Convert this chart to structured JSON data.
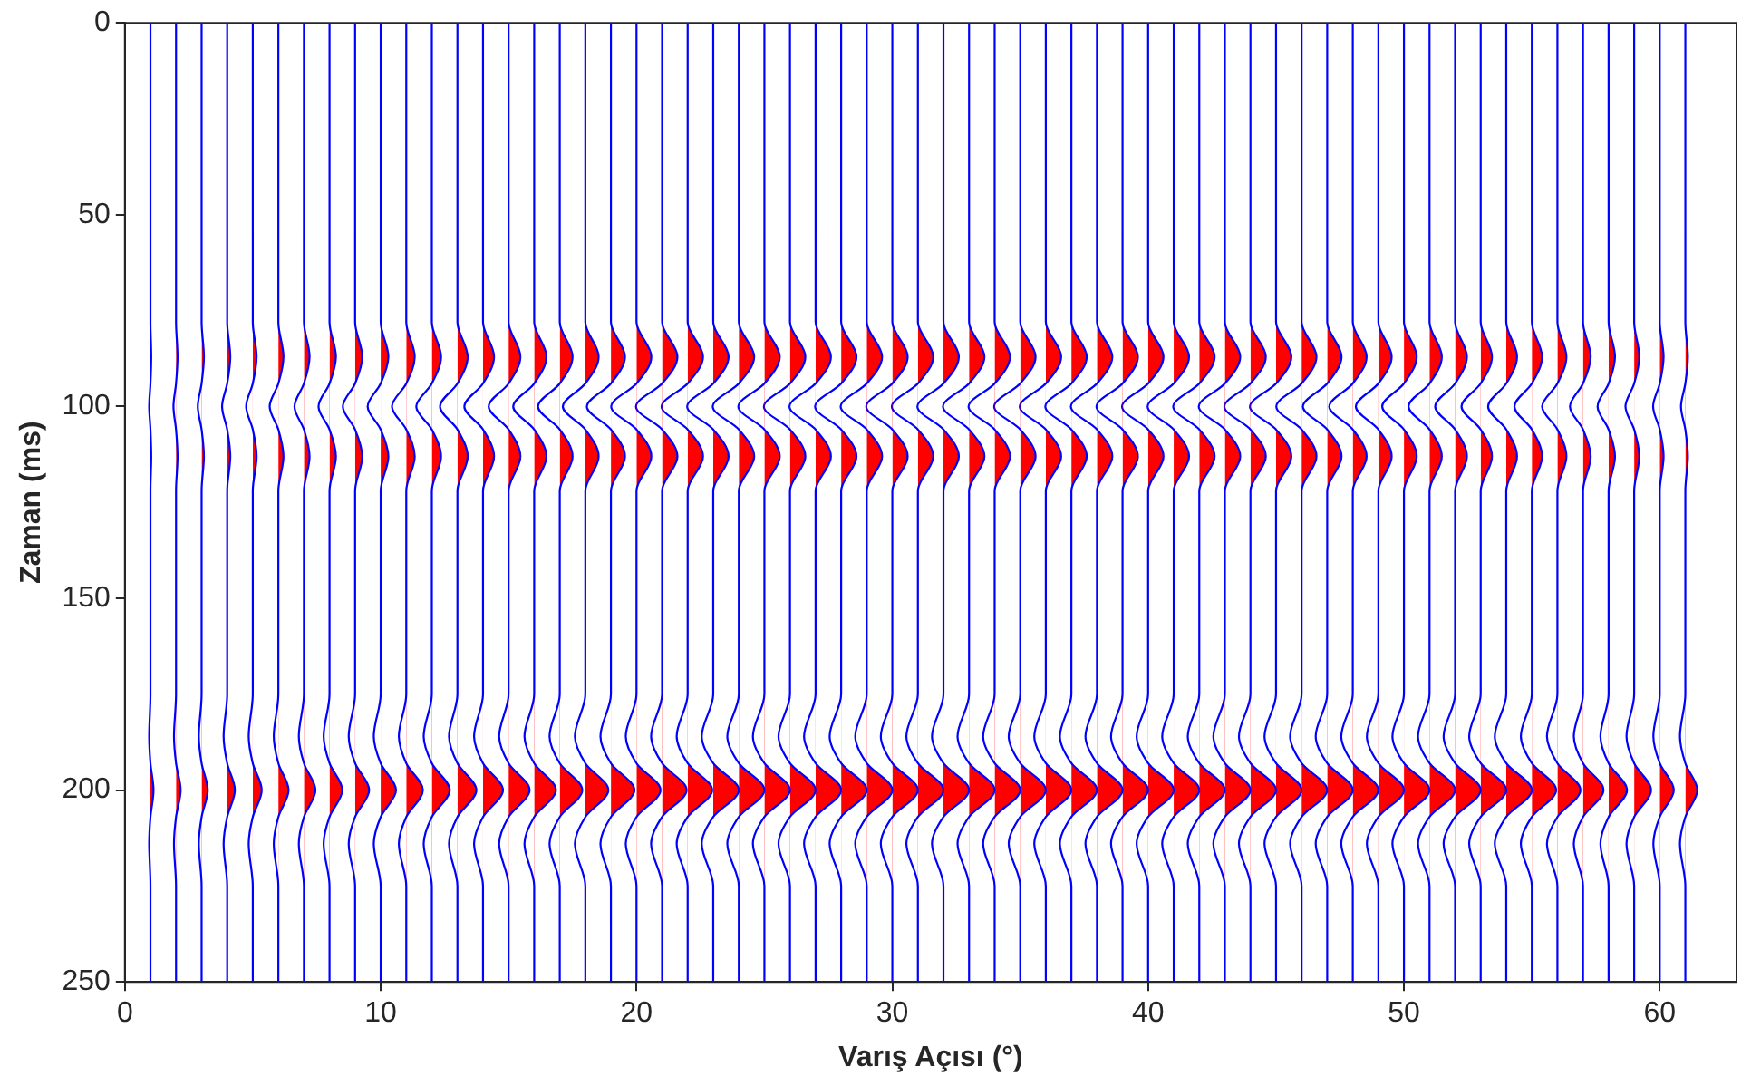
{
  "chart_data": {
    "type": "area",
    "xlabel": "Varış Açısı (°)",
    "ylabel": "Zaman (ms)",
    "xlim": [
      0,
      63
    ],
    "xticks": [
      0,
      10,
      20,
      30,
      40,
      50,
      60
    ],
    "ylim": [
      250,
      0
    ],
    "yticks": [
      0,
      50,
      100,
      150,
      200,
      250
    ],
    "series": [
      {
        "color": "#ff0000",
        "values": [
          0,
          78,
          87,
          94,
          100,
          106,
          113,
          122,
          175,
          186,
          193,
          200,
          207,
          214,
          225,
          250
        ],
        "x": [
          1,
          1,
          1.03,
          1,
          0.95,
          1,
          1.03,
          1,
          1,
          0.95,
          1,
          1.12,
          1,
          0.95,
          1,
          1
        ]
      },
      {
        "color": "#ff0000",
        "values": [
          0,
          78,
          87,
          94,
          100,
          106,
          113,
          122,
          175,
          186,
          193,
          200,
          207,
          214,
          225,
          250
        ],
        "x": [
          2,
          2,
          2.06,
          2,
          1.9,
          2,
          2.06,
          2,
          2,
          1.92,
          2,
          2.18,
          2,
          1.92,
          2,
          2
        ]
      },
      {
        "color": "#ff0000",
        "values": [
          0,
          78,
          87,
          94,
          100,
          106,
          113,
          122,
          175,
          186,
          193,
          200,
          207,
          214,
          225,
          250
        ],
        "x": [
          3,
          3,
          3.09,
          3,
          2.85,
          3,
          3.09,
          3,
          3,
          2.89,
          3,
          3.24,
          3,
          2.89,
          3,
          3
        ]
      },
      {
        "color": "#ff0000",
        "values": [
          0,
          78,
          87,
          94,
          100,
          106,
          113,
          122,
          175,
          186,
          193,
          200,
          207,
          214,
          225,
          250
        ],
        "x": [
          4,
          4,
          4.12,
          4,
          3.8,
          4,
          4.12,
          4,
          4,
          3.86,
          4,
          4.3,
          4,
          3.86,
          4,
          4
        ]
      },
      {
        "color": "#ff0000",
        "values": [
          0,
          78,
          87,
          94,
          100,
          106,
          113,
          122,
          175,
          186,
          193,
          200,
          207,
          214,
          225,
          250
        ],
        "x": [
          5,
          5,
          5.15,
          5,
          4.74,
          5,
          5.15,
          5,
          5,
          4.84,
          5,
          5.35,
          5,
          4.84,
          5,
          5
        ]
      },
      {
        "color": "#ff0000",
        "values": [
          0,
          78,
          87,
          94,
          100,
          106,
          113,
          122,
          175,
          186,
          193,
          200,
          207,
          214,
          225,
          250
        ],
        "x": [
          6,
          6,
          6.2,
          6,
          5.66,
          6,
          6.2,
          6,
          6,
          5.82,
          6,
          6.4,
          6,
          5.82,
          6,
          6
        ]
      },
      {
        "color": "#ff0000",
        "values": [
          0,
          78,
          87,
          94,
          100,
          106,
          113,
          122,
          175,
          186,
          193,
          200,
          207,
          214,
          225,
          250
        ],
        "x": [
          7,
          7,
          7.22,
          7,
          6.63,
          7,
          7.22,
          7,
          7,
          6.8,
          7,
          7.45,
          7,
          6.8,
          7,
          7
        ]
      },
      {
        "color": "#ff0000",
        "values": [
          0,
          78,
          87,
          94,
          100,
          106,
          113,
          122,
          175,
          186,
          193,
          200,
          207,
          214,
          225,
          250
        ],
        "x": [
          8,
          8,
          8.25,
          8,
          7.57,
          8,
          8.25,
          8,
          8,
          7.77,
          8,
          8.5,
          8,
          7.77,
          8,
          8
        ]
      },
      {
        "color": "#ff0000",
        "values": [
          0,
          78,
          87,
          94,
          100,
          106,
          113,
          122,
          175,
          186,
          193,
          200,
          207,
          214,
          225,
          250
        ],
        "x": [
          9,
          9,
          9.28,
          9,
          8.52,
          9,
          9.28,
          9,
          9,
          8.75,
          9,
          9.55,
          9,
          8.75,
          9,
          9
        ]
      },
      {
        "color": "#ff0000",
        "values": [
          0,
          78,
          87,
          94,
          100,
          106,
          113,
          122,
          175,
          186,
          193,
          200,
          207,
          214,
          225,
          250
        ],
        "x": [
          10,
          10,
          10.3,
          10,
          9.49,
          10,
          10.3,
          10,
          10,
          9.73,
          10,
          10.6,
          10,
          9.73,
          10,
          10
        ]
      },
      {
        "color": "#ff0000",
        "values": [
          0,
          78,
          87,
          94,
          100,
          106,
          113,
          122,
          175,
          186,
          193,
          200,
          207,
          214,
          225,
          250
        ],
        "x": [
          11,
          11,
          11.33,
          11,
          10.44,
          11,
          11.33,
          11,
          11,
          10.71,
          11,
          11.65,
          11,
          10.71,
          11,
          11
        ]
      },
      {
        "color": "#ff0000",
        "values": [
          0,
          78,
          87,
          94,
          100,
          106,
          113,
          122,
          175,
          186,
          193,
          200,
          207,
          214,
          225,
          250
        ],
        "x": [
          12,
          12,
          12.36,
          12,
          11.39,
          12,
          12.36,
          12,
          12,
          11.68,
          12,
          12.7,
          12,
          11.68,
          12,
          12
        ]
      },
      {
        "color": "#ff0000",
        "values": [
          0,
          78,
          87,
          94,
          100,
          106,
          113,
          122,
          175,
          186,
          193,
          200,
          207,
          214,
          225,
          250
        ],
        "x": [
          13,
          13,
          13.4,
          13,
          12.32,
          13,
          13.4,
          13,
          13,
          12.67,
          13,
          13.74,
          13,
          12.67,
          13,
          13
        ]
      },
      {
        "color": "#ff0000",
        "values": [
          0,
          78,
          87,
          94,
          100,
          106,
          113,
          122,
          175,
          186,
          193,
          200,
          207,
          214,
          225,
          250
        ],
        "x": [
          14,
          14,
          14.43,
          14,
          13.27,
          14,
          14.43,
          14,
          14,
          13.65,
          14,
          14.78,
          14,
          13.65,
          14,
          14
        ]
      },
      {
        "color": "#ff0000",
        "values": [
          0,
          78,
          87,
          94,
          100,
          106,
          113,
          122,
          175,
          186,
          193,
          200,
          207,
          214,
          225,
          250
        ],
        "x": [
          15,
          15,
          15.46,
          15,
          14.22,
          15,
          15.46,
          15,
          15,
          14.63,
          15,
          15.82,
          15,
          14.63,
          15,
          15
        ]
      },
      {
        "color": "#ff0000",
        "values": [
          0,
          78,
          87,
          94,
          100,
          106,
          113,
          122,
          175,
          186,
          193,
          200,
          207,
          214,
          225,
          250
        ],
        "x": [
          16,
          16,
          16.48,
          16,
          15.18,
          16,
          16.48,
          16,
          16,
          15.62,
          16,
          16.85,
          16,
          15.62,
          16,
          16
        ]
      },
      {
        "color": "#ff0000",
        "values": [
          0,
          78,
          87,
          94,
          100,
          106,
          113,
          122,
          175,
          186,
          193,
          200,
          207,
          214,
          225,
          250
        ],
        "x": [
          17,
          17,
          17.5,
          17,
          16.15,
          17,
          17.5,
          17,
          17,
          16.6,
          17,
          17.88,
          17,
          16.6,
          17,
          17
        ]
      },
      {
        "color": "#ff0000",
        "values": [
          0,
          78,
          87,
          94,
          100,
          106,
          113,
          122,
          175,
          186,
          193,
          200,
          207,
          214,
          225,
          250
        ],
        "x": [
          18,
          18,
          18.52,
          18,
          17.12,
          18,
          18.52,
          18,
          18,
          17.59,
          18,
          18.9,
          18,
          17.59,
          18,
          18
        ]
      },
      {
        "color": "#ff0000",
        "values": [
          0,
          78,
          87,
          94,
          100,
          106,
          113,
          122,
          175,
          186,
          193,
          200,
          207,
          214,
          225,
          250
        ],
        "x": [
          19,
          19,
          19.55,
          19,
          18.06,
          19,
          19.55,
          19,
          19,
          18.59,
          19,
          19.92,
          19,
          18.59,
          19,
          19
        ]
      },
      {
        "color": "#ff0000",
        "values": [
          0,
          78,
          87,
          94,
          100,
          106,
          113,
          122,
          175,
          186,
          193,
          200,
          207,
          214,
          225,
          250
        ],
        "x": [
          20,
          20,
          20.58,
          20,
          19.01,
          20,
          20.58,
          20,
          20,
          19.58,
          20,
          20.94,
          20,
          19.58,
          20,
          20
        ]
      },
      {
        "color": "#ff0000",
        "values": [
          0,
          78,
          87,
          94,
          100,
          106,
          113,
          122,
          175,
          186,
          193,
          200,
          207,
          214,
          225,
          250
        ],
        "x": [
          21,
          21,
          21.6,
          21,
          19.98,
          21,
          21.6,
          21,
          21,
          20.57,
          21,
          21.96,
          21,
          20.57,
          21,
          21
        ]
      },
      {
        "color": "#ff0000",
        "values": [
          0,
          78,
          87,
          94,
          100,
          106,
          113,
          122,
          175,
          186,
          193,
          200,
          207,
          214,
          225,
          250
        ],
        "x": [
          22,
          22,
          22.6,
          22,
          20.98,
          22,
          22.6,
          22,
          22,
          21.57,
          22,
          22.96,
          22,
          21.57,
          22,
          22
        ]
      },
      {
        "color": "#ff0000",
        "values": [
          0,
          78,
          87,
          94,
          100,
          106,
          113,
          122,
          175,
          186,
          193,
          200,
          207,
          214,
          225,
          250
        ],
        "x": [
          23,
          23,
          23.6,
          23,
          21.98,
          23,
          23.6,
          23,
          23,
          22.55,
          23,
          24,
          23,
          22.55,
          23,
          23
        ]
      },
      {
        "color": "#ff0000",
        "values": [
          0,
          78,
          87,
          94,
          100,
          106,
          113,
          122,
          175,
          186,
          193,
          200,
          207,
          214,
          225,
          250
        ],
        "x": [
          24,
          24,
          24.6,
          24,
          22.98,
          24,
          24.6,
          24,
          24,
          23.55,
          24,
          25,
          24,
          23.55,
          24,
          24
        ]
      },
      {
        "color": "#ff0000",
        "values": [
          0,
          78,
          87,
          94,
          100,
          106,
          113,
          122,
          175,
          186,
          193,
          200,
          207,
          214,
          225,
          250
        ],
        "x": [
          25,
          25,
          25.6,
          25,
          23.98,
          25,
          25.6,
          25,
          25,
          24.55,
          25,
          26,
          25,
          24.55,
          25,
          25
        ]
      },
      {
        "color": "#ff0000",
        "values": [
          0,
          78,
          87,
          94,
          100,
          106,
          113,
          122,
          175,
          186,
          193,
          200,
          207,
          214,
          225,
          250
        ],
        "x": [
          26,
          26,
          26.6,
          26,
          24.98,
          26,
          26.6,
          26,
          26,
          25.55,
          26,
          27,
          26,
          25.55,
          26,
          26
        ]
      },
      {
        "color": "#ff0000",
        "values": [
          0,
          78,
          87,
          94,
          100,
          106,
          113,
          122,
          175,
          186,
          193,
          200,
          207,
          214,
          225,
          250
        ],
        "x": [
          27,
          27,
          27.6,
          27,
          25.98,
          27,
          27.6,
          27,
          27,
          26.55,
          27,
          28,
          27,
          26.55,
          27,
          27
        ]
      },
      {
        "color": "#ff0000",
        "values": [
          0,
          78,
          87,
          94,
          100,
          106,
          113,
          122,
          175,
          186,
          193,
          200,
          207,
          214,
          225,
          250
        ],
        "x": [
          28,
          28,
          28.6,
          28,
          26.98,
          28,
          28.6,
          28,
          28,
          27.55,
          28,
          29,
          28,
          27.55,
          28,
          28
        ]
      },
      {
        "color": "#ff0000",
        "values": [
          0,
          78,
          87,
          94,
          100,
          106,
          113,
          122,
          175,
          186,
          193,
          200,
          207,
          214,
          225,
          250
        ],
        "x": [
          29,
          29,
          29.6,
          29,
          27.98,
          29,
          29.6,
          29,
          29,
          28.55,
          29,
          30,
          29,
          28.55,
          29,
          29
        ]
      },
      {
        "color": "#ff0000",
        "values": [
          0,
          78,
          87,
          94,
          100,
          106,
          113,
          122,
          175,
          186,
          193,
          200,
          207,
          214,
          225,
          250
        ],
        "x": [
          30,
          30,
          30.6,
          30,
          28.98,
          30,
          30.6,
          30,
          30,
          29.55,
          30,
          31,
          30,
          29.55,
          30,
          30
        ]
      },
      {
        "color": "#ff0000",
        "values": [
          0,
          78,
          87,
          94,
          100,
          106,
          113,
          122,
          175,
          186,
          193,
          200,
          207,
          214,
          225,
          250
        ],
        "x": [
          31,
          31,
          31.6,
          31,
          29.98,
          31,
          31.6,
          31,
          31,
          30.55,
          31,
          32,
          31,
          30.55,
          31,
          31
        ]
      },
      {
        "color": "#ff0000",
        "values": [
          0,
          78,
          87,
          94,
          100,
          106,
          113,
          122,
          175,
          186,
          193,
          200,
          207,
          214,
          225,
          250
        ],
        "x": [
          32,
          32,
          32.6,
          32,
          30.98,
          32,
          32.6,
          32,
          32,
          31.55,
          32,
          33,
          32,
          31.55,
          32,
          32
        ]
      },
      {
        "color": "#ff0000",
        "values": [
          0,
          78,
          87,
          94,
          100,
          106,
          113,
          122,
          175,
          186,
          193,
          200,
          207,
          214,
          225,
          250
        ],
        "x": [
          33,
          33,
          33.6,
          33,
          31.98,
          33,
          33.6,
          33,
          33,
          32.55,
          33,
          34,
          33,
          32.55,
          33,
          33
        ]
      },
      {
        "color": "#ff0000",
        "values": [
          0,
          78,
          87,
          94,
          100,
          106,
          113,
          122,
          175,
          186,
          193,
          200,
          207,
          214,
          225,
          250
        ],
        "x": [
          34,
          34,
          34.6,
          34,
          32.98,
          34,
          34.6,
          34,
          34,
          33.55,
          34,
          35,
          34,
          33.55,
          34,
          34
        ]
      },
      {
        "color": "#ff0000",
        "values": [
          0,
          78,
          87,
          94,
          100,
          106,
          113,
          122,
          175,
          186,
          193,
          200,
          207,
          214,
          225,
          250
        ],
        "x": [
          35,
          35,
          35.6,
          35,
          33.98,
          35,
          35.6,
          35,
          35,
          34.55,
          35,
          36,
          35,
          34.55,
          35,
          35
        ]
      },
      {
        "color": "#ff0000",
        "values": [
          0,
          78,
          87,
          94,
          100,
          106,
          113,
          122,
          175,
          186,
          193,
          200,
          207,
          214,
          225,
          250
        ],
        "x": [
          36,
          36,
          36.6,
          36,
          34.98,
          36,
          36.6,
          36,
          36,
          35.55,
          36,
          37,
          36,
          35.55,
          36,
          36
        ]
      },
      {
        "color": "#ff0000",
        "values": [
          0,
          78,
          87,
          94,
          100,
          106,
          113,
          122,
          175,
          186,
          193,
          200,
          207,
          214,
          225,
          250
        ],
        "x": [
          37,
          37,
          37.6,
          37,
          35.98,
          37,
          37.6,
          37,
          37,
          36.55,
          37,
          38,
          37,
          36.55,
          37,
          37
        ]
      },
      {
        "color": "#ff0000",
        "values": [
          0,
          78,
          87,
          94,
          100,
          106,
          113,
          122,
          175,
          186,
          193,
          200,
          207,
          214,
          225,
          250
        ],
        "x": [
          38,
          38,
          38.6,
          38,
          36.98,
          38,
          38.6,
          38,
          38,
          37.55,
          38,
          39,
          38,
          37.55,
          38,
          38
        ]
      },
      {
        "color": "#ff0000",
        "values": [
          0,
          78,
          87,
          94,
          100,
          106,
          113,
          122,
          175,
          186,
          193,
          200,
          207,
          214,
          225,
          250
        ],
        "x": [
          39,
          39,
          39.6,
          39,
          37.98,
          39,
          39.6,
          39,
          39,
          38.55,
          39,
          40,
          39,
          38.55,
          39,
          39
        ]
      },
      {
        "color": "#ff0000",
        "values": [
          0,
          78,
          87,
          94,
          100,
          106,
          113,
          122,
          175,
          186,
          193,
          200,
          207,
          214,
          225,
          250
        ],
        "x": [
          40,
          40,
          40.6,
          40,
          38.98,
          40,
          40.6,
          40,
          40,
          39.55,
          40,
          41,
          40,
          39.55,
          40,
          40
        ]
      },
      {
        "color": "#ff0000",
        "values": [
          0,
          78,
          87,
          94,
          100,
          106,
          113,
          122,
          175,
          186,
          193,
          200,
          207,
          214,
          225,
          250
        ],
        "x": [
          41,
          41,
          41.6,
          41,
          39.98,
          41,
          41.6,
          41,
          41,
          40.55,
          41,
          42,
          41,
          40.55,
          41,
          41
        ]
      },
      {
        "color": "#ff0000",
        "values": [
          0,
          78,
          87,
          94,
          100,
          106,
          113,
          122,
          175,
          186,
          193,
          200,
          207,
          214,
          225,
          250
        ],
        "x": [
          42,
          42,
          42.6,
          42,
          40.98,
          42,
          42.6,
          42,
          42,
          41.55,
          42,
          43,
          42,
          41.55,
          42,
          42
        ]
      },
      {
        "color": "#ff0000",
        "values": [
          0,
          78,
          87,
          94,
          100,
          106,
          113,
          122,
          175,
          186,
          193,
          200,
          207,
          214,
          225,
          250
        ],
        "x": [
          43,
          43,
          43.6,
          43,
          41.98,
          43,
          43.6,
          43,
          43,
          42.55,
          43,
          44,
          43,
          42.55,
          43,
          43
        ]
      },
      {
        "color": "#ff0000",
        "values": [
          0,
          78,
          87,
          94,
          100,
          106,
          113,
          122,
          175,
          186,
          193,
          200,
          207,
          214,
          225,
          250
        ],
        "x": [
          44,
          44,
          44.6,
          44,
          42.98,
          44,
          44.6,
          44,
          44,
          43.55,
          44,
          45,
          44,
          43.55,
          44,
          44
        ]
      },
      {
        "color": "#ff0000",
        "values": [
          0,
          78,
          87,
          94,
          100,
          106,
          113,
          122,
          175,
          186,
          193,
          200,
          207,
          214,
          225,
          250
        ],
        "x": [
          45,
          45,
          45.6,
          45,
          43.98,
          45,
          45.6,
          45,
          45,
          44.55,
          45,
          46,
          45,
          44.55,
          45,
          45
        ]
      },
      {
        "color": "#ff0000",
        "values": [
          0,
          78,
          87,
          94,
          100,
          106,
          113,
          122,
          175,
          186,
          193,
          200,
          207,
          214,
          225,
          250
        ],
        "x": [
          46,
          46,
          46.58,
          46,
          45.01,
          46,
          46.58,
          46,
          46,
          45.55,
          46,
          47,
          46,
          45.55,
          46,
          46
        ]
      },
      {
        "color": "#ff0000",
        "values": [
          0,
          78,
          87,
          94,
          100,
          106,
          113,
          122,
          175,
          186,
          193,
          200,
          207,
          214,
          225,
          250
        ],
        "x": [
          47,
          47,
          47.56,
          47,
          46.05,
          47,
          47.56,
          47,
          47,
          46.55,
          47,
          48,
          47,
          46.55,
          47,
          47
        ]
      },
      {
        "color": "#ff0000",
        "values": [
          0,
          78,
          87,
          94,
          100,
          106,
          113,
          122,
          175,
          186,
          193,
          200,
          207,
          214,
          225,
          250
        ],
        "x": [
          48,
          48,
          48.54,
          48,
          47.08,
          48,
          48.54,
          48,
          48,
          47.55,
          48,
          49,
          48,
          47.55,
          48,
          48
        ]
      },
      {
        "color": "#ff0000",
        "values": [
          0,
          78,
          87,
          94,
          100,
          106,
          113,
          122,
          175,
          186,
          193,
          200,
          207,
          214,
          225,
          250
        ],
        "x": [
          49,
          49,
          49.52,
          49,
          48.12,
          49,
          49.52,
          49,
          49,
          48.55,
          49,
          50,
          49,
          48.55,
          49,
          49
        ]
      },
      {
        "color": "#ff0000",
        "values": [
          0,
          78,
          87,
          94,
          100,
          106,
          113,
          122,
          175,
          186,
          193,
          200,
          207,
          214,
          225,
          250
        ],
        "x": [
          50,
          50,
          50.5,
          50,
          49.15,
          50,
          50.5,
          50,
          50,
          49.55,
          50,
          51,
          50,
          49.55,
          50,
          50
        ]
      },
      {
        "color": "#ff0000",
        "values": [
          0,
          78,
          87,
          94,
          100,
          106,
          113,
          122,
          175,
          186,
          193,
          200,
          207,
          214,
          225,
          250
        ],
        "x": [
          51,
          51,
          51.48,
          51,
          50.18,
          51,
          51.48,
          51,
          51,
          50.55,
          51,
          52,
          51,
          50.55,
          51,
          51
        ]
      },
      {
        "color": "#ff0000",
        "values": [
          0,
          78,
          87,
          94,
          100,
          106,
          113,
          122,
          175,
          186,
          193,
          200,
          207,
          214,
          225,
          250
        ],
        "x": [
          52,
          52,
          52.46,
          52,
          51.22,
          52,
          52.46,
          52,
          52,
          51.55,
          52,
          53,
          52,
          51.55,
          52,
          52
        ]
      },
      {
        "color": "#ff0000",
        "values": [
          0,
          78,
          87,
          94,
          100,
          106,
          113,
          122,
          175,
          186,
          193,
          200,
          207,
          214,
          225,
          250
        ],
        "x": [
          53,
          53,
          53.44,
          53,
          52.25,
          53,
          53.44,
          53,
          53,
          52.55,
          53,
          54,
          53,
          52.55,
          53,
          53
        ]
      },
      {
        "color": "#ff0000",
        "values": [
          0,
          78,
          87,
          94,
          100,
          106,
          113,
          122,
          175,
          186,
          193,
          200,
          207,
          214,
          225,
          250
        ],
        "x": [
          54,
          54,
          54.42,
          54,
          53.29,
          54,
          54.42,
          54,
          54,
          53.55,
          54,
          55,
          54,
          53.55,
          54,
          54
        ]
      },
      {
        "color": "#ff0000",
        "values": [
          0,
          78,
          87,
          94,
          100,
          106,
          113,
          122,
          175,
          186,
          193,
          200,
          207,
          214,
          225,
          250
        ],
        "x": [
          55,
          55,
          55.4,
          55,
          54.32,
          55,
          55.4,
          55,
          55,
          54.57,
          55,
          55.95,
          55,
          54.57,
          55,
          55
        ]
      },
      {
        "color": "#ff0000",
        "values": [
          0,
          78,
          87,
          94,
          100,
          106,
          113,
          122,
          175,
          186,
          193,
          200,
          207,
          214,
          225,
          250
        ],
        "x": [
          56,
          56,
          56.35,
          56,
          55.4,
          56,
          56.35,
          56,
          56,
          55.59,
          56,
          56.9,
          56,
          55.59,
          56,
          56
        ]
      },
      {
        "color": "#ff0000",
        "values": [
          0,
          78,
          87,
          94,
          100,
          106,
          113,
          122,
          175,
          186,
          193,
          200,
          207,
          214,
          225,
          250
        ],
        "x": [
          57,
          57,
          57.3,
          57,
          56.49,
          57,
          57.3,
          57,
          57,
          56.64,
          57,
          57.8,
          57,
          56.64,
          57,
          57
        ]
      },
      {
        "color": "#ff0000",
        "values": [
          0,
          78,
          87,
          94,
          100,
          106,
          113,
          122,
          175,
          186,
          193,
          200,
          207,
          214,
          225,
          250
        ],
        "x": [
          58,
          58,
          58.25,
          58,
          57.57,
          58,
          58.25,
          58,
          58,
          57.68,
          58,
          58.72,
          58,
          57.68,
          58,
          58
        ]
      },
      {
        "color": "#ff0000",
        "values": [
          0,
          78,
          87,
          94,
          100,
          106,
          113,
          122,
          175,
          186,
          193,
          200,
          207,
          214,
          225,
          250
        ],
        "x": [
          59,
          59,
          59.2,
          59,
          58.66,
          59,
          59.2,
          59,
          59,
          58.7,
          59,
          59.66,
          59,
          58.7,
          59,
          59
        ]
      },
      {
        "color": "#ff0000",
        "values": [
          0,
          78,
          87,
          94,
          100,
          106,
          113,
          122,
          175,
          186,
          193,
          200,
          207,
          214,
          225,
          250
        ],
        "x": [
          60,
          60,
          60.15,
          60,
          59.74,
          60,
          60.15,
          60,
          60,
          59.75,
          60,
          60.55,
          60,
          59.75,
          60,
          60
        ]
      },
      {
        "color": "#ff0000",
        "values": [
          0,
          78,
          87,
          94,
          100,
          106,
          113,
          122,
          175,
          186,
          193,
          200,
          207,
          214,
          225,
          250
        ],
        "x": [
          61,
          61,
          61.1,
          61,
          60.83,
          61,
          61.1,
          61,
          61,
          60.79,
          61,
          61.47,
          61,
          60.79,
          61,
          61
        ]
      }
    ]
  }
}
